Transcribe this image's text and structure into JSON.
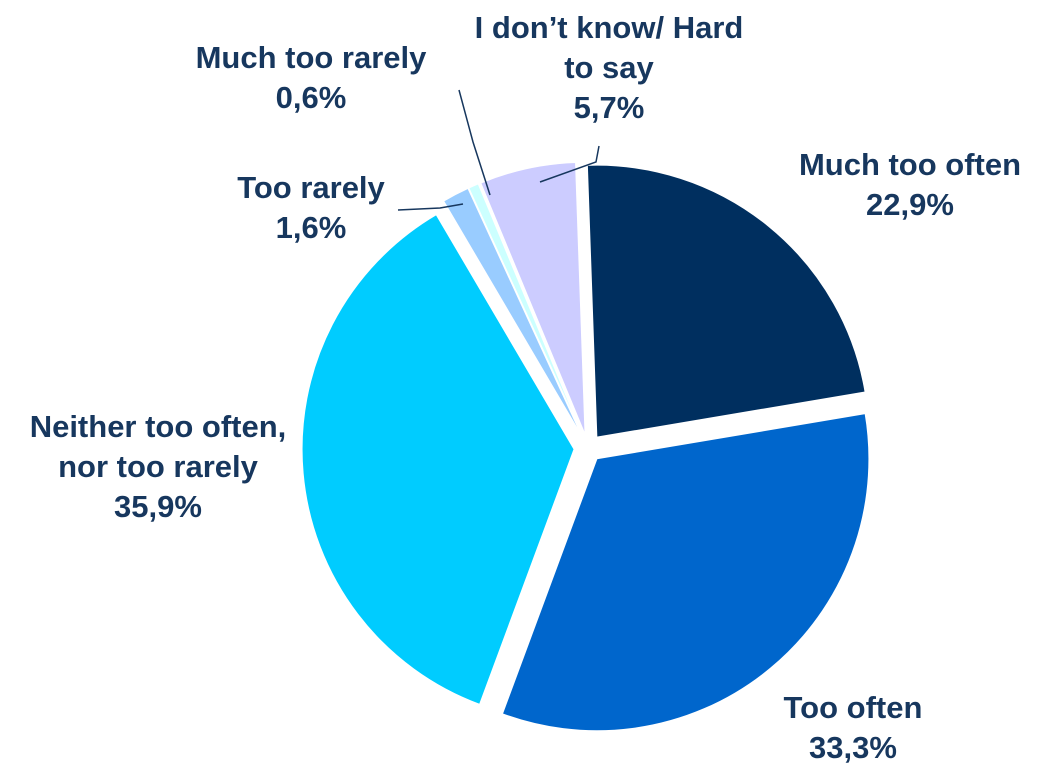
{
  "chart_data": {
    "type": "pie",
    "slices": [
      {
        "label_lines": [
          "Much too often"
        ],
        "value": 22.9,
        "value_label": "22,9%",
        "color": "#002f5f"
      },
      {
        "label_lines": [
          "Too often"
        ],
        "value": 33.3,
        "value_label": "33,3%",
        "color": "#0066cc"
      },
      {
        "label_lines": [
          "Neither too often,",
          "nor too rarely"
        ],
        "value": 35.9,
        "value_label": "35,9%",
        "color": "#00ccff"
      },
      {
        "label_lines": [
          "Too rarely"
        ],
        "value": 1.6,
        "value_label": "1,6%",
        "color": "#99ccff"
      },
      {
        "label_lines": [
          "Much too rarely"
        ],
        "value": 0.6,
        "value_label": "0,6%",
        "color": "#ccffff"
      },
      {
        "label_lines": [
          "I don’t know/ Hard",
          "to say"
        ],
        "value": 5.7,
        "value_label": "5,7%",
        "color": "#ccccff"
      }
    ],
    "label_color": "#17375e"
  }
}
